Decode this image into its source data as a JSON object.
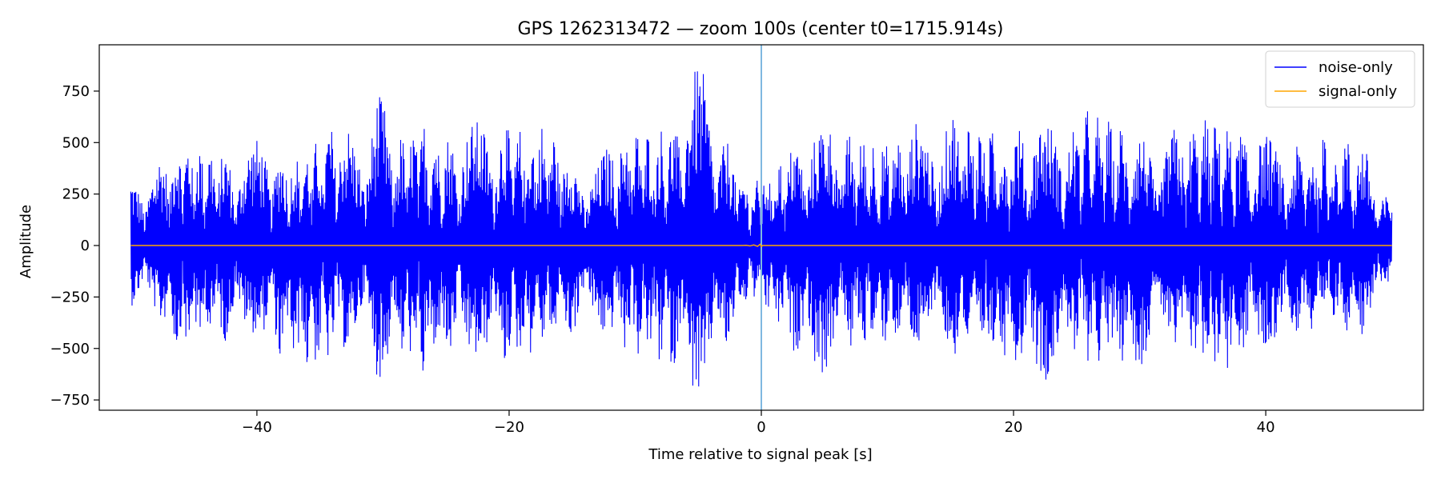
{
  "chart_data": {
    "type": "line",
    "title": "GPS 1262313472 — zoom 100s (center t0=1715.914s)",
    "xlabel": "Time relative to signal peak [s]",
    "ylabel": "Amplitude",
    "xlim": [
      -52.5,
      52.5
    ],
    "ylim": [
      -800,
      975
    ],
    "xticks": [
      -40,
      -20,
      0,
      20,
      40
    ],
    "xtick_labels": [
      "−40",
      "−20",
      "0",
      "20",
      "40"
    ],
    "yticks": [
      -750,
      -500,
      -250,
      0,
      250,
      500,
      750
    ],
    "ytick_labels": [
      "−750",
      "−500",
      "−250",
      "0",
      "250",
      "500",
      "750"
    ],
    "grid": false,
    "legend_position": "top-right",
    "vline": {
      "x": 0,
      "color": "#7fb8e0"
    },
    "series": [
      {
        "name": "noise-only",
        "color": "#0000ff",
        "x_range": [
          -50,
          50
        ],
        "envelope": {
          "x": [
            -50,
            -48,
            -46,
            -44,
            -42,
            -40,
            -38,
            -36,
            -34,
            -32,
            -30.5,
            -29,
            -27,
            -25,
            -23,
            -21,
            -19,
            -17,
            -15,
            -13,
            -11,
            -9,
            -7,
            -5,
            -4.6,
            -3,
            -1,
            0,
            1,
            3,
            4.2,
            6,
            8,
            10,
            12,
            14,
            16,
            18,
            20,
            22,
            24,
            26,
            28,
            30,
            32,
            34,
            36,
            38,
            40,
            42,
            44,
            46,
            48,
            50
          ],
          "upper": [
            360,
            420,
            550,
            500,
            450,
            520,
            460,
            480,
            610,
            560,
            790,
            520,
            620,
            540,
            600,
            640,
            560,
            610,
            440,
            420,
            580,
            590,
            600,
            890,
            900,
            560,
            300,
            340,
            420,
            530,
            640,
            560,
            540,
            520,
            600,
            620,
            680,
            560,
            580,
            640,
            540,
            680,
            600,
            560,
            560,
            600,
            640,
            560,
            540,
            470,
            520,
            560,
            480,
            260
          ],
          "lower": [
            -320,
            -340,
            -540,
            -480,
            -460,
            -420,
            -600,
            -620,
            -560,
            -480,
            -700,
            -520,
            -680,
            -560,
            -540,
            -610,
            -560,
            -480,
            -440,
            -420,
            -520,
            -560,
            -600,
            -740,
            -810,
            -560,
            -260,
            -300,
            -380,
            -560,
            -730,
            -500,
            -520,
            -480,
            -500,
            -520,
            -580,
            -560,
            -560,
            -690,
            -560,
            -580,
            -560,
            -600,
            -520,
            -580,
            -600,
            -620,
            -500,
            -460,
            -430,
            -400,
            -480,
            -170
          ]
        }
      },
      {
        "name": "signal-only",
        "color": "#ffa500",
        "x": [
          -50,
          -1.5,
          -1.2,
          -0.9,
          -0.6,
          -0.3,
          -0.1,
          0,
          0.1,
          50
        ],
        "y": [
          0,
          0,
          1,
          -2,
          3,
          -4,
          6,
          -5,
          0,
          0
        ]
      }
    ]
  }
}
